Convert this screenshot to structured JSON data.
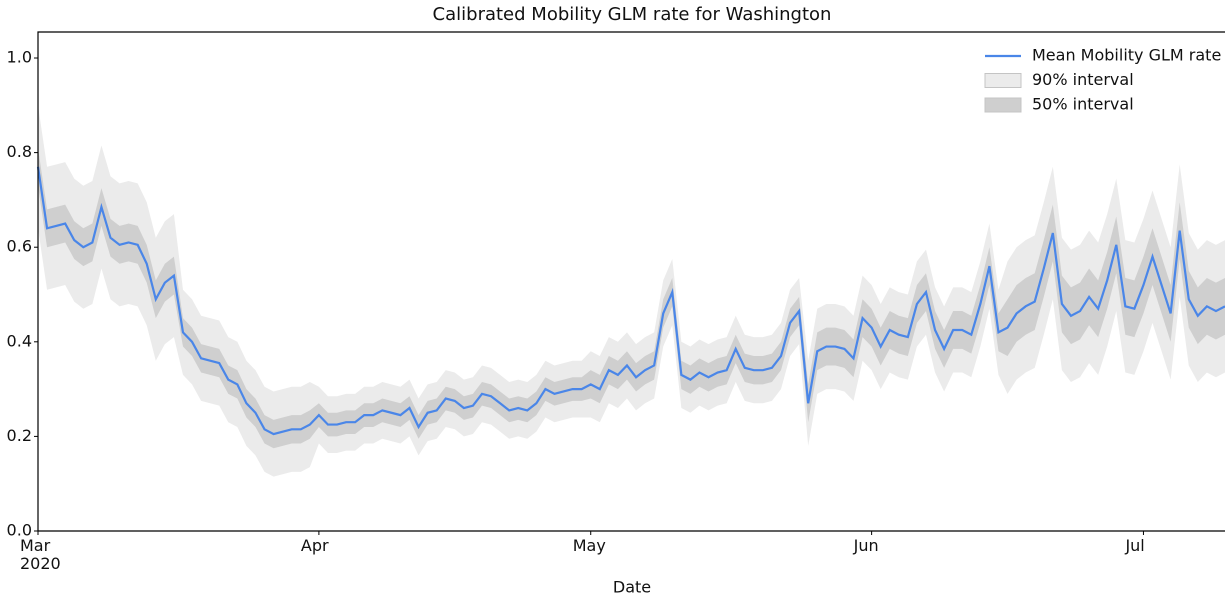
{
  "chart_data": {
    "type": "line",
    "title": "Calibrated Mobility GLM rate for Washington",
    "x_label": "Date",
    "xlim": [
      0,
      131
    ],
    "xticks": [
      {
        "value": 0,
        "label": "Mar\n2020"
      },
      {
        "value": 31,
        "label": "Apr"
      },
      {
        "value": 61,
        "label": "May"
      },
      {
        "value": 92,
        "label": "Jun"
      },
      {
        "value": 122,
        "label": "Jul"
      }
    ],
    "ylim": [
      0,
      1.055
    ],
    "yticks": [
      {
        "value": 0,
        "label": "0.0"
      },
      0.2,
      0.4,
      0.6,
      0.8,
      {
        "value": 1,
        "label": "1.0"
      }
    ],
    "legend": "upper right",
    "grid": false,
    "series": [
      {
        "name": "Mean Mobility GLM rate",
        "color": "#4a86e8",
        "values": [
          0.77,
          0.64,
          0.645,
          0.65,
          0.615,
          0.6,
          0.61,
          0.685,
          0.62,
          0.605,
          0.61,
          0.605,
          0.565,
          0.49,
          0.525,
          0.54,
          0.42,
          0.4,
          0.365,
          0.36,
          0.355,
          0.32,
          0.31,
          0.27,
          0.25,
          0.215,
          0.205,
          0.21,
          0.215,
          0.215,
          0.225,
          0.245,
          0.225,
          0.225,
          0.23,
          0.23,
          0.245,
          0.245,
          0.255,
          0.25,
          0.245,
          0.26,
          0.22,
          0.25,
          0.255,
          0.28,
          0.275,
          0.26,
          0.265,
          0.29,
          0.285,
          0.27,
          0.255,
          0.26,
          0.255,
          0.27,
          0.3,
          0.29,
          0.295,
          0.3,
          0.3,
          0.31,
          0.3,
          0.34,
          0.33,
          0.35,
          0.325,
          0.34,
          0.35,
          0.46,
          0.505,
          0.33,
          0.32,
          0.335,
          0.325,
          0.335,
          0.34,
          0.385,
          0.345,
          0.34,
          0.34,
          0.345,
          0.37,
          0.44,
          0.465,
          0.27,
          0.38,
          0.39,
          0.39,
          0.385,
          0.365,
          0.45,
          0.43,
          0.39,
          0.425,
          0.415,
          0.41,
          0.48,
          0.505,
          0.425,
          0.385,
          0.425,
          0.425,
          0.415,
          0.48,
          0.56,
          0.42,
          0.43,
          0.46,
          0.475,
          0.485,
          0.555,
          0.63,
          0.48,
          0.455,
          0.465,
          0.495,
          0.47,
          0.53,
          0.605,
          0.475,
          0.47,
          0.52,
          0.58,
          0.52,
          0.46,
          0.635,
          0.49,
          0.455,
          0.475,
          0.465,
          0.475
        ]
      },
      {
        "name": "90% interval",
        "color": "#ebebeb",
        "lower": [
          0.64,
          0.51,
          0.515,
          0.52,
          0.485,
          0.47,
          0.48,
          0.555,
          0.49,
          0.475,
          0.48,
          0.475,
          0.435,
          0.36,
          0.395,
          0.41,
          0.33,
          0.31,
          0.275,
          0.27,
          0.265,
          0.23,
          0.22,
          0.18,
          0.16,
          0.125,
          0.115,
          0.12,
          0.125,
          0.125,
          0.135,
          0.185,
          0.165,
          0.165,
          0.17,
          0.17,
          0.185,
          0.185,
          0.195,
          0.19,
          0.185,
          0.2,
          0.16,
          0.19,
          0.195,
          0.22,
          0.215,
          0.2,
          0.205,
          0.23,
          0.225,
          0.21,
          0.195,
          0.2,
          0.195,
          0.21,
          0.24,
          0.23,
          0.235,
          0.24,
          0.24,
          0.24,
          0.23,
          0.27,
          0.26,
          0.28,
          0.255,
          0.27,
          0.28,
          0.39,
          0.435,
          0.26,
          0.25,
          0.265,
          0.255,
          0.265,
          0.27,
          0.315,
          0.275,
          0.27,
          0.27,
          0.275,
          0.3,
          0.37,
          0.395,
          0.18,
          0.29,
          0.3,
          0.3,
          0.295,
          0.275,
          0.36,
          0.34,
          0.3,
          0.335,
          0.325,
          0.32,
          0.39,
          0.415,
          0.335,
          0.295,
          0.335,
          0.335,
          0.325,
          0.39,
          0.47,
          0.33,
          0.29,
          0.32,
          0.335,
          0.345,
          0.415,
          0.49,
          0.34,
          0.315,
          0.325,
          0.355,
          0.33,
          0.39,
          0.465,
          0.335,
          0.33,
          0.38,
          0.44,
          0.38,
          0.32,
          0.495,
          0.35,
          0.315,
          0.335,
          0.325,
          0.335
        ],
        "upper": [
          0.9,
          0.77,
          0.775,
          0.78,
          0.745,
          0.73,
          0.74,
          0.815,
          0.75,
          0.735,
          0.74,
          0.735,
          0.695,
          0.62,
          0.655,
          0.67,
          0.51,
          0.49,
          0.455,
          0.45,
          0.445,
          0.41,
          0.4,
          0.36,
          0.34,
          0.305,
          0.295,
          0.3,
          0.305,
          0.305,
          0.315,
          0.305,
          0.285,
          0.285,
          0.29,
          0.29,
          0.305,
          0.305,
          0.315,
          0.31,
          0.305,
          0.32,
          0.28,
          0.31,
          0.315,
          0.34,
          0.335,
          0.32,
          0.325,
          0.35,
          0.345,
          0.33,
          0.315,
          0.32,
          0.315,
          0.33,
          0.36,
          0.35,
          0.355,
          0.36,
          0.36,
          0.38,
          0.37,
          0.41,
          0.4,
          0.42,
          0.395,
          0.41,
          0.42,
          0.53,
          0.575,
          0.4,
          0.39,
          0.405,
          0.395,
          0.405,
          0.41,
          0.455,
          0.415,
          0.41,
          0.41,
          0.415,
          0.44,
          0.51,
          0.535,
          0.36,
          0.47,
          0.48,
          0.48,
          0.475,
          0.455,
          0.54,
          0.52,
          0.48,
          0.515,
          0.505,
          0.5,
          0.57,
          0.595,
          0.515,
          0.475,
          0.515,
          0.515,
          0.505,
          0.57,
          0.65,
          0.51,
          0.57,
          0.6,
          0.615,
          0.625,
          0.695,
          0.77,
          0.62,
          0.595,
          0.605,
          0.635,
          0.61,
          0.67,
          0.745,
          0.615,
          0.61,
          0.66,
          0.72,
          0.66,
          0.6,
          0.775,
          0.63,
          0.595,
          0.615,
          0.605,
          0.615
        ]
      },
      {
        "name": "50% interval",
        "color": "#cfcfcf",
        "lower": [
          0.73,
          0.6,
          0.605,
          0.61,
          0.575,
          0.56,
          0.57,
          0.645,
          0.58,
          0.565,
          0.57,
          0.565,
          0.525,
          0.45,
          0.485,
          0.5,
          0.39,
          0.37,
          0.335,
          0.33,
          0.325,
          0.29,
          0.28,
          0.24,
          0.22,
          0.185,
          0.175,
          0.18,
          0.185,
          0.185,
          0.195,
          0.22,
          0.2,
          0.2,
          0.205,
          0.205,
          0.22,
          0.22,
          0.23,
          0.225,
          0.22,
          0.235,
          0.195,
          0.225,
          0.23,
          0.255,
          0.25,
          0.235,
          0.24,
          0.265,
          0.26,
          0.245,
          0.23,
          0.235,
          0.23,
          0.245,
          0.275,
          0.265,
          0.27,
          0.275,
          0.275,
          0.28,
          0.27,
          0.31,
          0.3,
          0.32,
          0.295,
          0.31,
          0.32,
          0.43,
          0.475,
          0.3,
          0.29,
          0.305,
          0.295,
          0.305,
          0.31,
          0.355,
          0.315,
          0.31,
          0.31,
          0.315,
          0.34,
          0.41,
          0.435,
          0.23,
          0.34,
          0.35,
          0.35,
          0.345,
          0.325,
          0.41,
          0.39,
          0.35,
          0.385,
          0.375,
          0.37,
          0.44,
          0.465,
          0.385,
          0.345,
          0.385,
          0.385,
          0.375,
          0.44,
          0.52,
          0.38,
          0.37,
          0.4,
          0.415,
          0.425,
          0.495,
          0.57,
          0.42,
          0.395,
          0.405,
          0.435,
          0.41,
          0.47,
          0.545,
          0.415,
          0.41,
          0.46,
          0.52,
          0.46,
          0.4,
          0.575,
          0.43,
          0.395,
          0.415,
          0.405,
          0.415
        ],
        "upper": [
          0.81,
          0.68,
          0.685,
          0.69,
          0.655,
          0.64,
          0.65,
          0.725,
          0.66,
          0.645,
          0.65,
          0.645,
          0.605,
          0.53,
          0.565,
          0.58,
          0.45,
          0.43,
          0.395,
          0.39,
          0.385,
          0.35,
          0.34,
          0.3,
          0.28,
          0.245,
          0.235,
          0.24,
          0.245,
          0.245,
          0.255,
          0.27,
          0.25,
          0.25,
          0.255,
          0.255,
          0.27,
          0.27,
          0.28,
          0.275,
          0.27,
          0.285,
          0.245,
          0.275,
          0.28,
          0.305,
          0.3,
          0.285,
          0.29,
          0.315,
          0.31,
          0.295,
          0.28,
          0.285,
          0.28,
          0.295,
          0.325,
          0.315,
          0.32,
          0.325,
          0.325,
          0.34,
          0.33,
          0.37,
          0.36,
          0.38,
          0.355,
          0.37,
          0.38,
          0.49,
          0.535,
          0.36,
          0.35,
          0.365,
          0.355,
          0.365,
          0.37,
          0.415,
          0.375,
          0.37,
          0.37,
          0.375,
          0.4,
          0.47,
          0.495,
          0.31,
          0.42,
          0.43,
          0.43,
          0.425,
          0.405,
          0.49,
          0.47,
          0.43,
          0.465,
          0.455,
          0.45,
          0.52,
          0.545,
          0.465,
          0.425,
          0.465,
          0.465,
          0.455,
          0.52,
          0.6,
          0.46,
          0.49,
          0.52,
          0.535,
          0.545,
          0.615,
          0.69,
          0.54,
          0.515,
          0.525,
          0.555,
          0.53,
          0.59,
          0.665,
          0.535,
          0.53,
          0.58,
          0.64,
          0.58,
          0.52,
          0.695,
          0.55,
          0.515,
          0.535,
          0.525,
          0.535
        ]
      }
    ]
  }
}
